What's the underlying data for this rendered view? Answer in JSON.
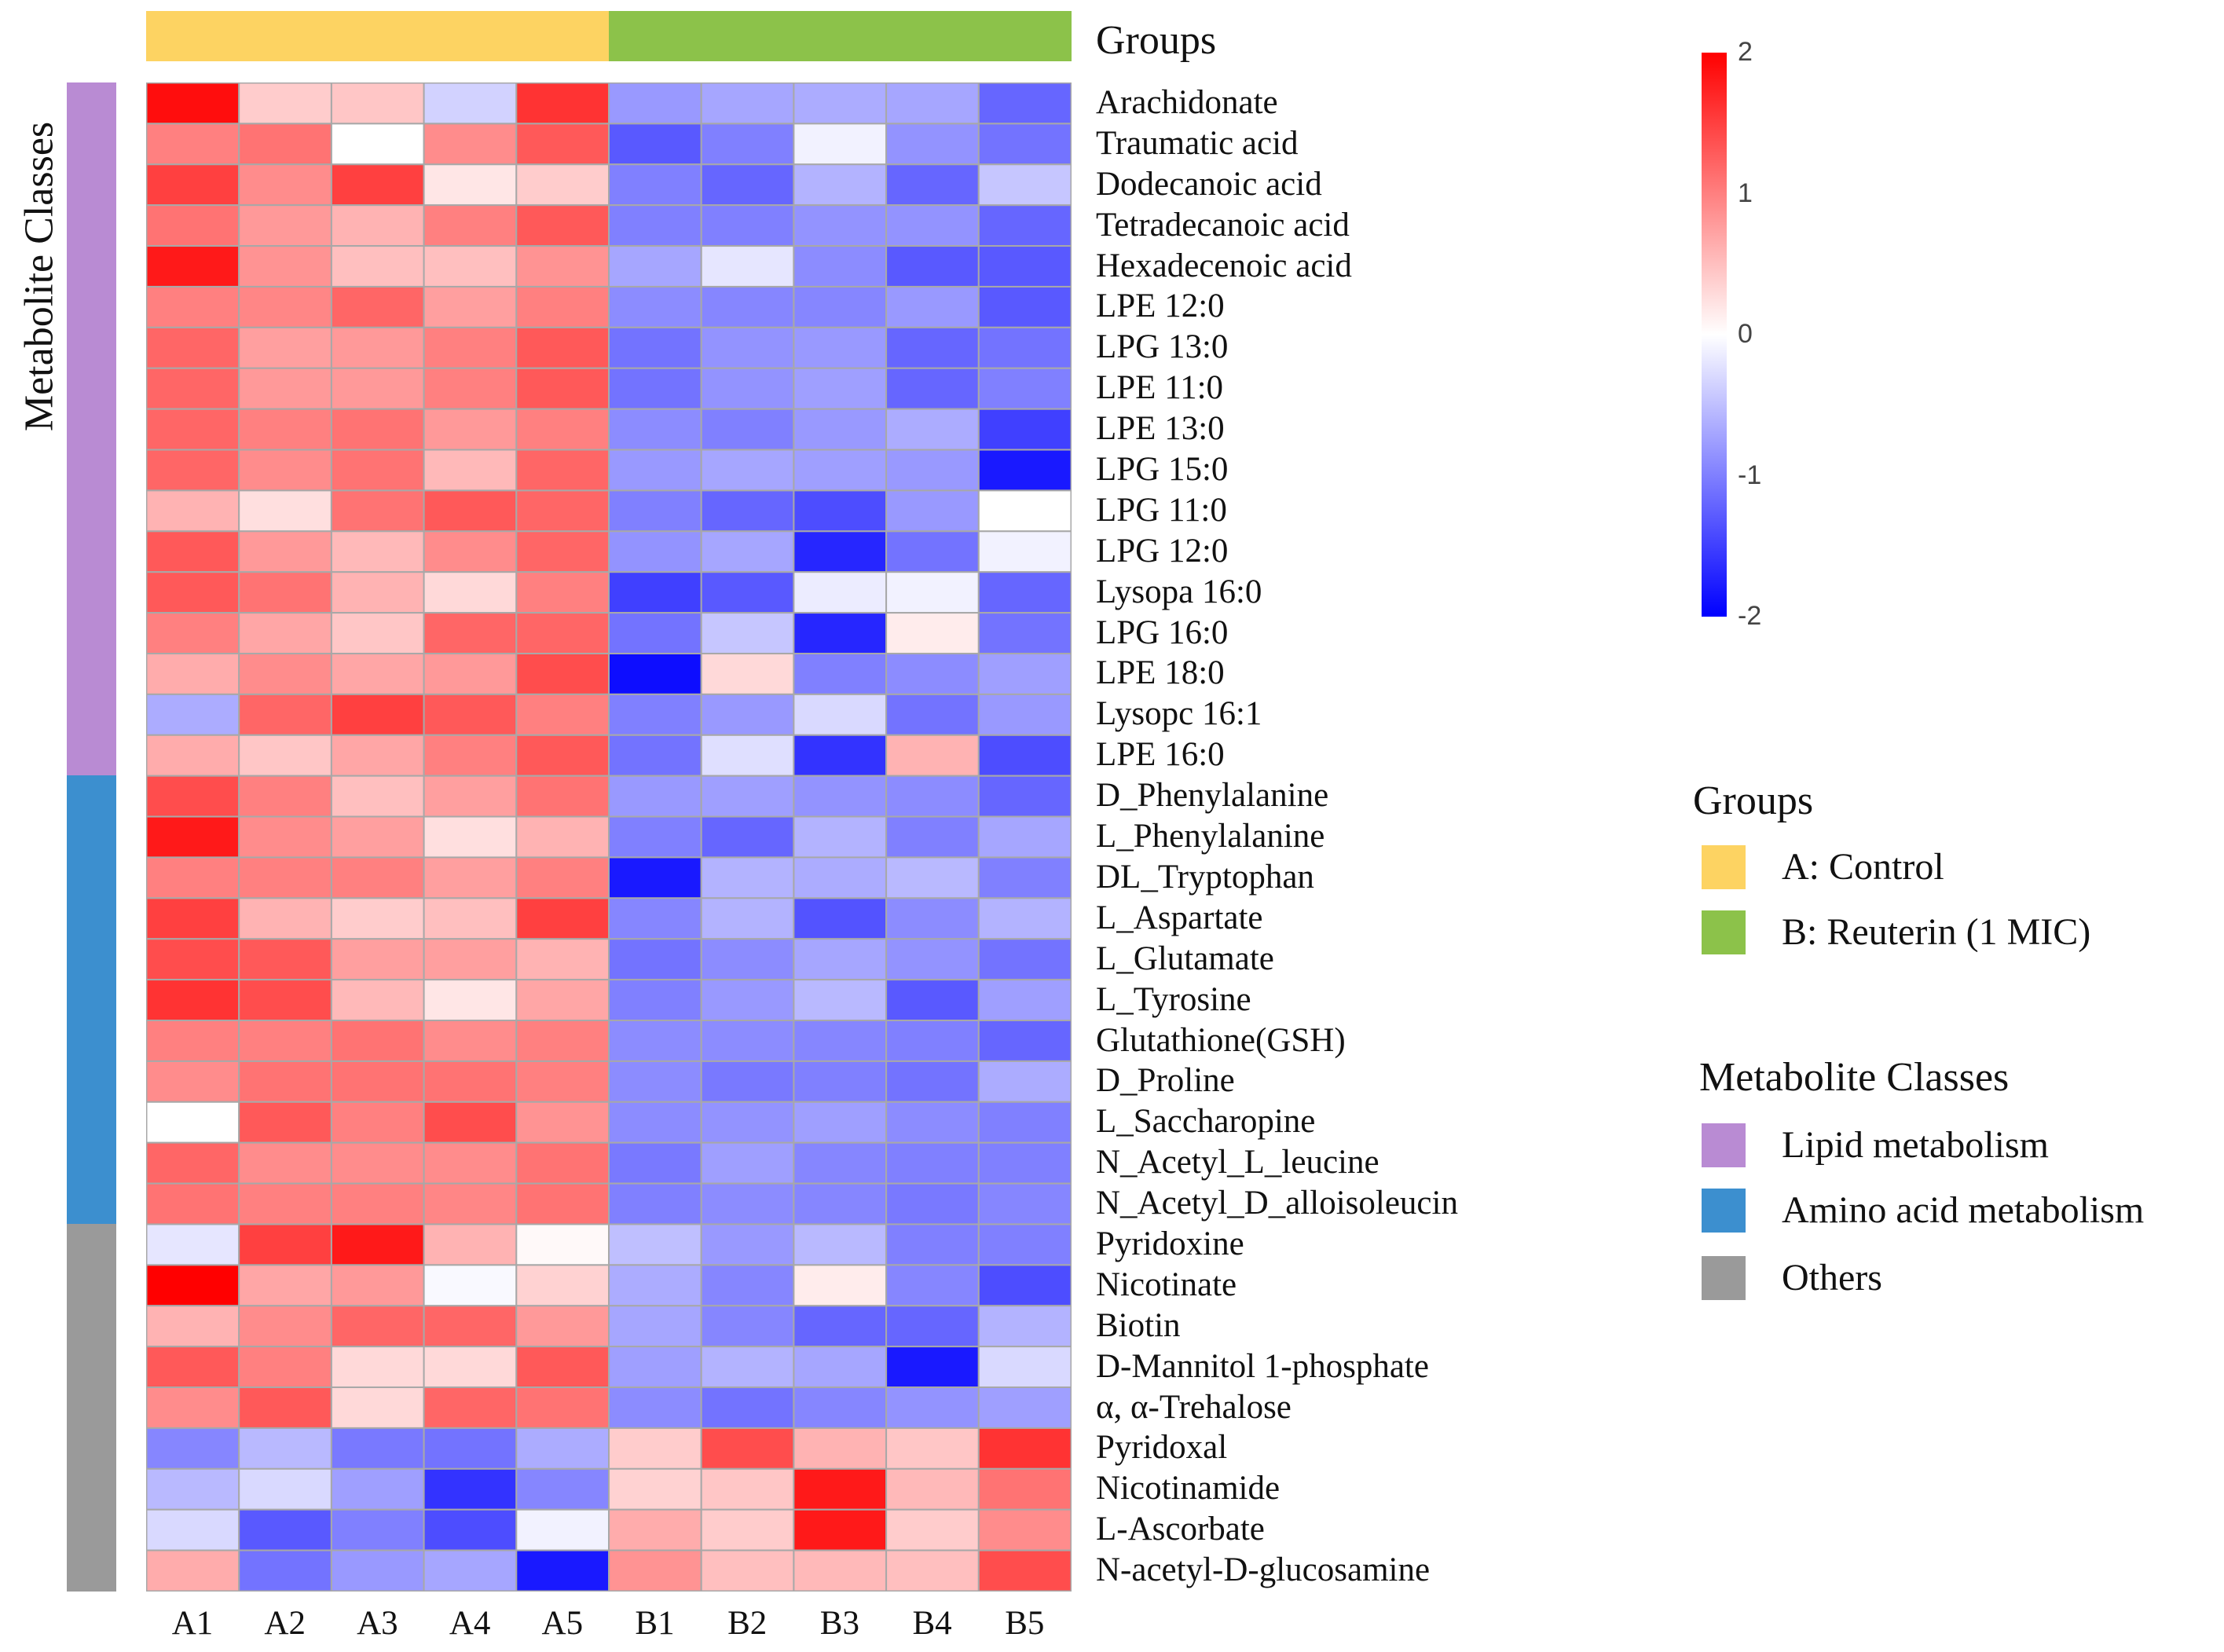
{
  "chart_data": {
    "type": "heatmap",
    "title": "",
    "columns": [
      "A1",
      "A2",
      "A3",
      "A4",
      "A5",
      "B1",
      "B2",
      "B3",
      "B4",
      "B5"
    ],
    "column_groups": [
      "A: Control",
      "A: Control",
      "A: Control",
      "A: Control",
      "A: Control",
      "B: Reuterin (1 MIC)",
      "B: Reuterin (1 MIC)",
      "B: Reuterin (1 MIC)",
      "B: Reuterin (1 MIC)",
      "B: Reuterin (1 MIC)"
    ],
    "rows": [
      "Arachidonate",
      "Traumatic acid",
      "Dodecanoic acid",
      "Tetradecanoic acid",
      "Hexadecenoic acid",
      "LPE 12:0",
      "LPG 13:0",
      "LPE 11:0",
      "LPE 13:0",
      "LPG 15:0",
      "LPG 11:0",
      "LPG 12:0",
      "Lysopa 16:0",
      "LPG 16:0",
      "LPE 18:0",
      "Lysopc 16:1",
      "LPE 16:0",
      "D_Phenylalanine",
      "L_Phenylalanine",
      "DL_Tryptophan",
      "L_Aspartate",
      "L_Glutamate",
      "L_Tyrosine",
      "Glutathione(GSH)",
      "D_Proline",
      "L_Saccharopine",
      "N_Acetyl_L_leucine",
      "N_Acetyl_D_alloisoleucin",
      "Pyridoxine",
      "Nicotinate",
      "Biotin",
      "D-Mannitol 1-phosphate",
      "α, α-Trehalose",
      "Pyridoxal",
      "Nicotinamide",
      "L-Ascorbate",
      "N-acetyl-D-glucosamine"
    ],
    "row_classes": [
      "Lipid metabolism",
      "Lipid metabolism",
      "Lipid metabolism",
      "Lipid metabolism",
      "Lipid metabolism",
      "Lipid metabolism",
      "Lipid metabolism",
      "Lipid metabolism",
      "Lipid metabolism",
      "Lipid metabolism",
      "Lipid metabolism",
      "Lipid metabolism",
      "Lipid metabolism",
      "Lipid metabolism",
      "Lipid metabolism",
      "Lipid metabolism",
      "Lipid metabolism",
      "Amino acid metabolism",
      "Amino acid metabolism",
      "Amino acid metabolism",
      "Amino acid metabolism",
      "Amino acid metabolism",
      "Amino acid metabolism",
      "Amino acid metabolism",
      "Amino acid metabolism",
      "Amino acid metabolism",
      "Amino acid metabolism",
      "Amino acid metabolism",
      "Others",
      "Others",
      "Others",
      "Others",
      "Others",
      "Others",
      "Others",
      "Others",
      "Others"
    ],
    "values": [
      [
        1.9,
        0.4,
        0.45,
        -0.35,
        1.6,
        -0.8,
        -0.7,
        -0.65,
        -0.7,
        -1.2
      ],
      [
        1.0,
        1.1,
        0,
        0.9,
        1.3,
        -1.3,
        -1.0,
        -0.1,
        -0.85,
        -1.1
      ],
      [
        1.5,
        0.9,
        1.5,
        0.2,
        0.4,
        -1.0,
        -1.2,
        -0.6,
        -1.2,
        -0.45
      ],
      [
        1.1,
        0.8,
        0.6,
        1.0,
        1.3,
        -1.0,
        -1.0,
        -0.85,
        -0.85,
        -1.2
      ],
      [
        1.8,
        0.85,
        0.5,
        0.5,
        0.85,
        -0.7,
        -0.2,
        -0.9,
        -1.3,
        -1.3
      ],
      [
        1.0,
        0.95,
        1.2,
        0.75,
        1.0,
        -0.9,
        -0.95,
        -0.95,
        -0.8,
        -1.3
      ],
      [
        1.2,
        0.75,
        0.8,
        1.0,
        1.3,
        -1.1,
        -0.85,
        -0.8,
        -1.2,
        -1.1
      ],
      [
        1.2,
        0.8,
        0.8,
        1.0,
        1.3,
        -1.1,
        -0.85,
        -0.75,
        -1.2,
        -1.0
      ],
      [
        1.2,
        1.0,
        1.1,
        0.8,
        1.0,
        -0.9,
        -1.0,
        -0.8,
        -0.65,
        -1.5
      ],
      [
        1.2,
        0.9,
        1.1,
        0.55,
        1.2,
        -0.8,
        -0.7,
        -0.75,
        -0.8,
        -1.8
      ],
      [
        0.6,
        0.25,
        1.1,
        1.3,
        1.2,
        -1.0,
        -1.2,
        -1.4,
        -0.8,
        0
      ],
      [
        1.3,
        0.8,
        0.55,
        0.9,
        1.2,
        -0.85,
        -0.7,
        -1.7,
        -1.1,
        -0.1
      ],
      [
        1.3,
        1.1,
        0.6,
        0.3,
        1.0,
        -1.5,
        -1.3,
        -0.15,
        -0.1,
        -1.2
      ],
      [
        1.0,
        0.7,
        0.45,
        1.2,
        1.2,
        -1.1,
        -0.45,
        -1.7,
        0.15,
        -1.1
      ],
      [
        0.65,
        0.9,
        0.7,
        0.8,
        1.4,
        -1.9,
        0.3,
        -1.0,
        -0.9,
        -0.75
      ],
      [
        -0.65,
        1.2,
        1.5,
        1.3,
        1.0,
        -1.0,
        -0.8,
        -0.3,
        -1.1,
        -0.8
      ],
      [
        0.65,
        0.45,
        0.7,
        1.0,
        1.3,
        -1.1,
        -0.25,
        -1.6,
        0.6,
        -1.4
      ],
      [
        1.4,
        1.0,
        0.5,
        0.75,
        1.1,
        -0.8,
        -0.75,
        -0.85,
        -0.9,
        -1.2
      ],
      [
        1.8,
        0.9,
        0.75,
        0.25,
        0.6,
        -1.0,
        -1.2,
        -0.6,
        -1.0,
        -0.7
      ],
      [
        1.0,
        1.0,
        1.0,
        0.75,
        1.0,
        -1.8,
        -0.6,
        -0.65,
        -0.55,
        -1.0
      ],
      [
        1.5,
        0.6,
        0.4,
        0.5,
        1.5,
        -0.95,
        -0.6,
        -1.35,
        -0.9,
        -0.6
      ],
      [
        1.4,
        1.3,
        0.75,
        0.75,
        0.6,
        -1.1,
        -0.9,
        -0.7,
        -0.85,
        -1.1
      ],
      [
        1.6,
        1.4,
        0.55,
        0.2,
        0.7,
        -1.0,
        -0.8,
        -0.55,
        -1.3,
        -0.75
      ],
      [
        1.0,
        1.0,
        1.1,
        0.9,
        1.0,
        -0.9,
        -0.9,
        -0.95,
        -1.0,
        -1.2
      ],
      [
        0.9,
        1.1,
        1.1,
        1.1,
        1.0,
        -0.9,
        -1.05,
        -1.0,
        -1.1,
        -0.65
      ],
      [
        0,
        1.3,
        1.0,
        1.4,
        0.85,
        -0.9,
        -0.85,
        -0.75,
        -0.9,
        -1.0
      ],
      [
        1.2,
        0.9,
        0.9,
        0.9,
        1.1,
        -1.05,
        -0.75,
        -0.95,
        -1.0,
        -1.0
      ],
      [
        1.1,
        1.0,
        1.0,
        0.95,
        1.1,
        -1.0,
        -0.9,
        -0.95,
        -1.05,
        -0.95
      ],
      [
        -0.2,
        1.5,
        1.8,
        0.6,
        0.05,
        -0.5,
        -0.8,
        -0.55,
        -1.0,
        -1.0
      ],
      [
        2.0,
        0.7,
        0.8,
        -0.05,
        0.35,
        -0.65,
        -0.95,
        0.15,
        -0.95,
        -1.4
      ],
      [
        0.6,
        0.9,
        1.2,
        1.2,
        0.8,
        -0.7,
        -0.95,
        -1.2,
        -1.2,
        -0.6
      ],
      [
        1.3,
        1.0,
        0.3,
        0.3,
        1.3,
        -0.75,
        -0.6,
        -0.7,
        -1.8,
        -0.3
      ],
      [
        0.9,
        1.3,
        0.3,
        1.2,
        1.1,
        -0.9,
        -1.1,
        -0.95,
        -0.85,
        -0.75
      ],
      [
        -0.95,
        -0.55,
        -1.05,
        -1.1,
        -0.65,
        0.4,
        1.4,
        0.6,
        0.45,
        1.6
      ],
      [
        -0.55,
        -0.3,
        -0.75,
        -1.6,
        -0.95,
        0.35,
        0.45,
        1.8,
        0.55,
        1.1
      ],
      [
        -0.3,
        -1.3,
        -1.0,
        -1.4,
        -0.1,
        0.65,
        0.4,
        1.8,
        0.4,
        0.9
      ],
      [
        0.65,
        -1.1,
        -0.8,
        -0.7,
        -1.8,
        0.85,
        0.5,
        0.55,
        0.5,
        1.4
      ]
    ],
    "color_scale": {
      "min": -2,
      "max": 2,
      "low": "#0000ff",
      "mid": "#ffffff",
      "high": "#ff0000",
      "ticks": [
        "2",
        "1",
        "0",
        "-1",
        "-2"
      ]
    },
    "group_annotation_label": "Groups",
    "class_annotation_label": "Metabolite Classes"
  },
  "legend": {
    "groups_title": "Groups",
    "groups": [
      {
        "label": "A: Control",
        "color": "#fdd362"
      },
      {
        "label": "B: Reuterin (1 MIC)",
        "color": "#8cc24a"
      }
    ],
    "classes_title": "Metabolite Classes",
    "classes": [
      {
        "label": "Lipid metabolism",
        "color": "#b98bd3"
      },
      {
        "label": "Amino acid metabolism",
        "color": "#3c8fcf"
      },
      {
        "label": "Others",
        "color": "#9a9a9a"
      }
    ]
  }
}
